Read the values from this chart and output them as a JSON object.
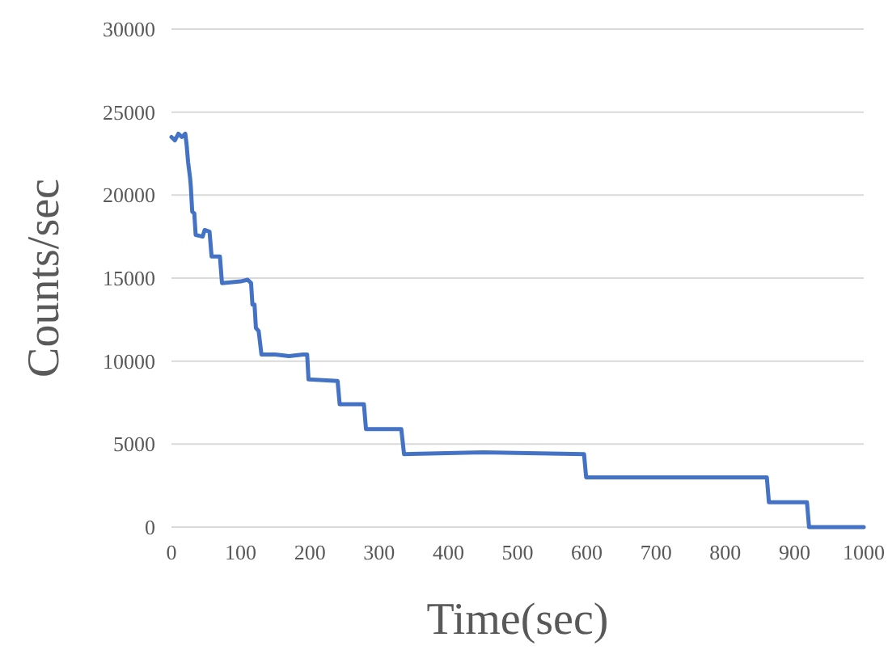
{
  "chart_data": {
    "type": "line",
    "xlabel": "Time(sec)",
    "ylabel": "Counts/sec",
    "xlim": [
      0,
      1000
    ],
    "xticks": [
      0,
      100,
      200,
      300,
      400,
      500,
      600,
      700,
      800,
      900,
      1000
    ],
    "ylim": [
      0,
      30000
    ],
    "yticks": [
      0,
      5000,
      10000,
      15000,
      20000,
      25000,
      30000
    ],
    "grid": "y",
    "marker": "none",
    "line_style": "solid",
    "series": [
      {
        "color": "#4472c4",
        "x": [
          0,
          5,
          10,
          15,
          20,
          22,
          24,
          27,
          28,
          30,
          33,
          35,
          45,
          48,
          55,
          58,
          70,
          73,
          100,
          110,
          115,
          117,
          120,
          122,
          126,
          130,
          150,
          170,
          190,
          196,
          198,
          240,
          243,
          278,
          281,
          332,
          336,
          450,
          596,
          599,
          860,
          863,
          918,
          921,
          1000
        ],
        "values": [
          23500,
          23300,
          23700,
          23500,
          23700,
          23000,
          22000,
          21000,
          20500,
          19000,
          18900,
          17600,
          17500,
          17900,
          17800,
          16300,
          16300,
          14700,
          14800,
          14900,
          14700,
          13400,
          13400,
          12000,
          11800,
          10400,
          10400,
          10300,
          10400,
          10400,
          8900,
          8800,
          7400,
          7400,
          5900,
          5900,
          4400,
          4500,
          4400,
          3000,
          3000,
          1500,
          1500,
          0,
          0
        ]
      }
    ]
  }
}
